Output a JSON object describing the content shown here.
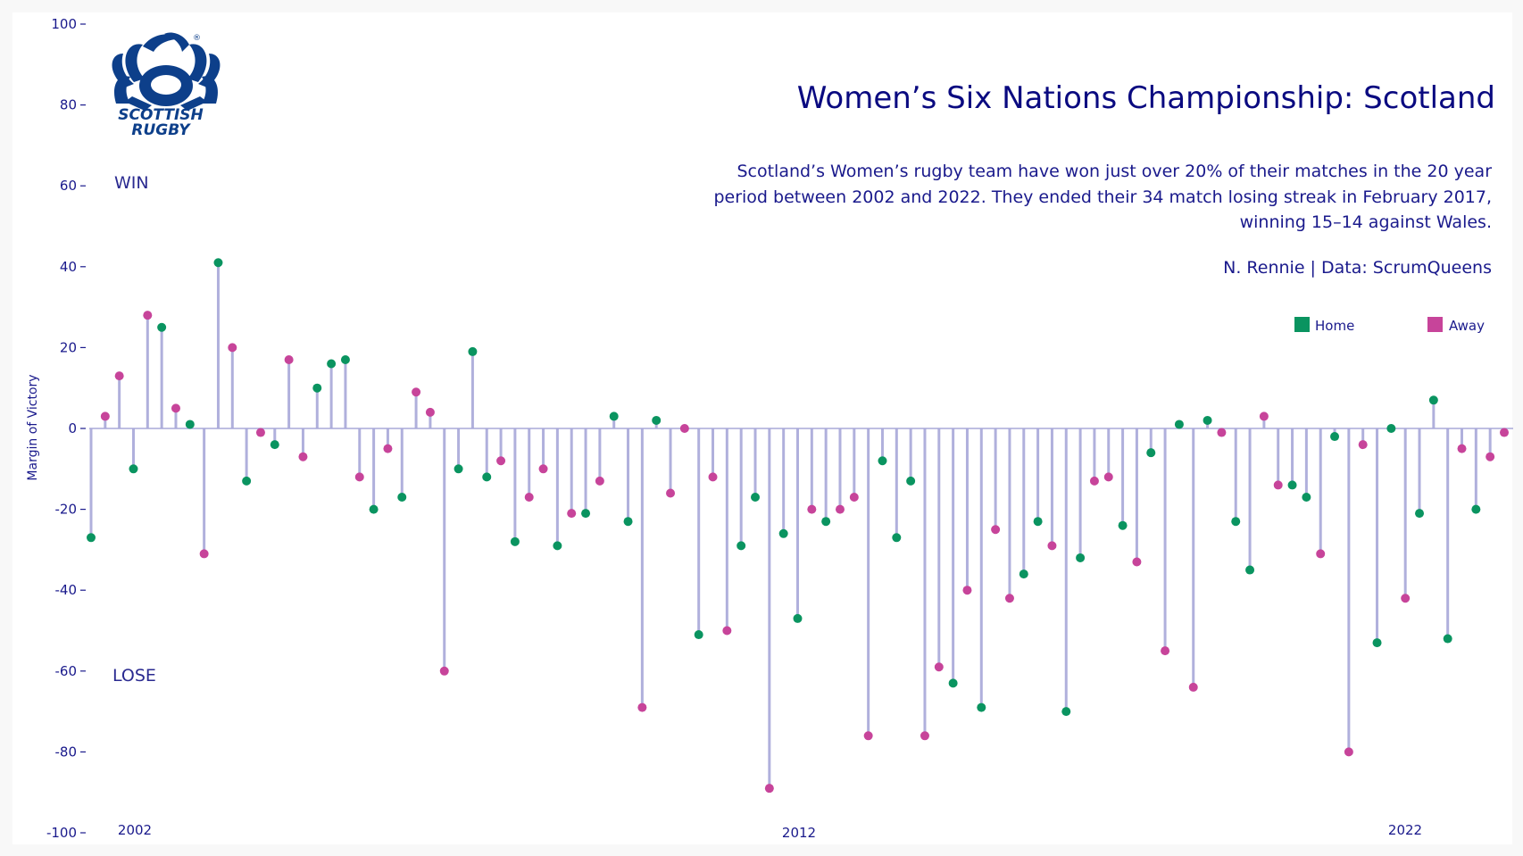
{
  "chart_data": {
    "type": "lollipop",
    "title": "Women’s Six Nations Championship: Scotland",
    "subtitle_lines": [
      "Scotland’s Women’s rugby team have won just over 20% of their matches in the 20 year",
      "period between 2002 and 2022. They ended their 34 match losing streak in February 2017,",
      "winning 15–14 against Wales."
    ],
    "caption": "N. Rennie | Data: ScrumQueens",
    "ylabel": "Margin of Victory",
    "ylim": [
      -100,
      100
    ],
    "yticks": [
      100,
      80,
      60,
      40,
      20,
      0,
      -20,
      -40,
      -60,
      -80,
      -100
    ],
    "xticks": [
      "2002",
      "2012",
      "2022"
    ],
    "annotations": {
      "win": "WIN",
      "lose": "LOSE"
    },
    "legend": {
      "position": "top-right",
      "home": "Home",
      "away": "Away"
    },
    "colors": {
      "home": "#0a9460",
      "away": "#c7449a",
      "stem": "#b0b0dc",
      "axis": "#1a1a8c"
    },
    "series": [
      {
        "v": -27,
        "t": "H"
      },
      {
        "v": 3,
        "t": "A"
      },
      {
        "v": 13,
        "t": "A"
      },
      {
        "v": -10,
        "t": "H"
      },
      {
        "v": 28,
        "t": "A"
      },
      {
        "v": 25,
        "t": "H"
      },
      {
        "v": 5,
        "t": "A"
      },
      {
        "v": 1,
        "t": "H"
      },
      {
        "v": -31,
        "t": "A"
      },
      {
        "v": 41,
        "t": "H"
      },
      {
        "v": 20,
        "t": "A"
      },
      {
        "v": -13,
        "t": "H"
      },
      {
        "v": -1,
        "t": "A"
      },
      {
        "v": -4,
        "t": "H"
      },
      {
        "v": 17,
        "t": "A"
      },
      {
        "v": -7,
        "t": "A"
      },
      {
        "v": 10,
        "t": "H"
      },
      {
        "v": 16,
        "t": "H"
      },
      {
        "v": 17,
        "t": "H"
      },
      {
        "v": -12,
        "t": "A"
      },
      {
        "v": -20,
        "t": "H"
      },
      {
        "v": -5,
        "t": "A"
      },
      {
        "v": -17,
        "t": "H"
      },
      {
        "v": 9,
        "t": "A"
      },
      {
        "v": 4,
        "t": "A"
      },
      {
        "v": -60,
        "t": "A"
      },
      {
        "v": -10,
        "t": "H"
      },
      {
        "v": 19,
        "t": "H"
      },
      {
        "v": -12,
        "t": "H"
      },
      {
        "v": -8,
        "t": "A"
      },
      {
        "v": -28,
        "t": "H"
      },
      {
        "v": -17,
        "t": "A"
      },
      {
        "v": -10,
        "t": "A"
      },
      {
        "v": -29,
        "t": "H"
      },
      {
        "v": -21,
        "t": "A"
      },
      {
        "v": -21,
        "t": "H"
      },
      {
        "v": -13,
        "t": "A"
      },
      {
        "v": 3,
        "t": "H"
      },
      {
        "v": -23,
        "t": "H"
      },
      {
        "v": -69,
        "t": "A"
      },
      {
        "v": 2,
        "t": "H"
      },
      {
        "v": -16,
        "t": "A"
      },
      {
        "v": 0,
        "t": "A"
      },
      {
        "v": -51,
        "t": "H"
      },
      {
        "v": -12,
        "t": "A"
      },
      {
        "v": -50,
        "t": "A"
      },
      {
        "v": -29,
        "t": "H"
      },
      {
        "v": -17,
        "t": "H"
      },
      {
        "v": -89,
        "t": "A"
      },
      {
        "v": -26,
        "t": "H"
      },
      {
        "v": -47,
        "t": "H"
      },
      {
        "v": -20,
        "t": "A"
      },
      {
        "v": -23,
        "t": "H"
      },
      {
        "v": -20,
        "t": "A"
      },
      {
        "v": -17,
        "t": "A"
      },
      {
        "v": -76,
        "t": "A"
      },
      {
        "v": -8,
        "t": "H"
      },
      {
        "v": -27,
        "t": "H"
      },
      {
        "v": -13,
        "t": "H"
      },
      {
        "v": -76,
        "t": "A"
      },
      {
        "v": -59,
        "t": "A"
      },
      {
        "v": -63,
        "t": "H"
      },
      {
        "v": -40,
        "t": "A"
      },
      {
        "v": -69,
        "t": "H"
      },
      {
        "v": -25,
        "t": "A"
      },
      {
        "v": -42,
        "t": "A"
      },
      {
        "v": -36,
        "t": "H"
      },
      {
        "v": -23,
        "t": "H"
      },
      {
        "v": -29,
        "t": "A"
      },
      {
        "v": -70,
        "t": "H"
      },
      {
        "v": -32,
        "t": "H"
      },
      {
        "v": -13,
        "t": "A"
      },
      {
        "v": -12,
        "t": "A"
      },
      {
        "v": -24,
        "t": "H"
      },
      {
        "v": -33,
        "t": "A"
      },
      {
        "v": -6,
        "t": "H"
      },
      {
        "v": -55,
        "t": "A"
      },
      {
        "v": 1,
        "t": "H"
      },
      {
        "v": -64,
        "t": "A"
      },
      {
        "v": 2,
        "t": "H"
      },
      {
        "v": -1,
        "t": "A"
      },
      {
        "v": -23,
        "t": "H"
      },
      {
        "v": -35,
        "t": "H"
      },
      {
        "v": 3,
        "t": "A"
      },
      {
        "v": -14,
        "t": "A"
      },
      {
        "v": -14,
        "t": "H"
      },
      {
        "v": -17,
        "t": "H"
      },
      {
        "v": -31,
        "t": "A"
      },
      {
        "v": -2,
        "t": "H"
      },
      {
        "v": -80,
        "t": "A"
      },
      {
        "v": -4,
        "t": "A"
      },
      {
        "v": -53,
        "t": "H"
      },
      {
        "v": 0,
        "t": "H"
      },
      {
        "v": -42,
        "t": "A"
      },
      {
        "v": -21,
        "t": "H"
      },
      {
        "v": 7,
        "t": "H"
      },
      {
        "v": -52,
        "t": "H"
      },
      {
        "v": -5,
        "t": "A"
      },
      {
        "v": -20,
        "t": "H"
      },
      {
        "v": -7,
        "t": "A"
      },
      {
        "v": -1,
        "t": "A"
      }
    ]
  },
  "logo": {
    "line1": "SCOTTISH",
    "line2": "RUGBY",
    "mark": "®",
    "icon": "thistle-icon"
  }
}
